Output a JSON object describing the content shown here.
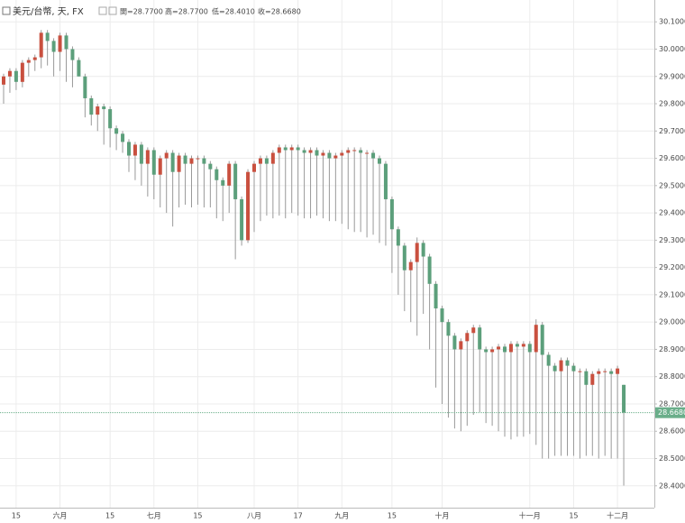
{
  "chart_data": {
    "type": "candlestick",
    "title": "美元/台幣, 天, FX",
    "legend_values": [
      "開=28.7700",
      "高=28.7700",
      "低=28.4010",
      "收=28.6680"
    ],
    "categories": [
      null,
      null,
      "15",
      null,
      null,
      null,
      null,
      null,
      null,
      "六月",
      null,
      null,
      null,
      null,
      null,
      null,
      null,
      "15",
      null,
      null,
      null,
      null,
      null,
      null,
      "七月",
      null,
      null,
      null,
      null,
      null,
      null,
      "15",
      null,
      null,
      null,
      null,
      null,
      null,
      null,
      null,
      "八月",
      null,
      null,
      null,
      null,
      null,
      null,
      "17",
      null,
      null,
      null,
      null,
      null,
      null,
      "九月",
      null,
      null,
      null,
      null,
      null,
      null,
      null,
      "15",
      null,
      null,
      null,
      null,
      null,
      null,
      null,
      "十月",
      null,
      null,
      null,
      null,
      null,
      null,
      null,
      null,
      null,
      null,
      null,
      null,
      null,
      "十一月",
      null,
      null,
      null,
      null,
      null,
      null,
      "15",
      null,
      null,
      null,
      null,
      null,
      null,
      "十二月",
      null
    ],
    "open": [
      29.87,
      29.9,
      29.92,
      29.88,
      29.95,
      29.96,
      29.97,
      30.06,
      30.03,
      29.99,
      30.05,
      30.0,
      29.96,
      29.9,
      29.82,
      29.76,
      29.79,
      29.78,
      29.71,
      29.69,
      29.66,
      29.61,
      29.65,
      29.58,
      29.63,
      29.54,
      29.6,
      29.62,
      29.55,
      29.61,
      29.58,
      29.6,
      29.6,
      29.58,
      29.56,
      29.52,
      29.5,
      29.58,
      29.45,
      29.3,
      29.55,
      29.58,
      29.6,
      29.58,
      29.62,
      29.64,
      29.63,
      29.64,
      29.63,
      29.62,
      29.63,
      29.61,
      29.62,
      29.6,
      29.61,
      29.62,
      29.63,
      29.63,
      29.62,
      29.62,
      29.6,
      29.58,
      29.45,
      29.34,
      29.28,
      29.19,
      29.22,
      29.29,
      29.24,
      29.14,
      29.05,
      29.0,
      28.95,
      28.9,
      28.93,
      28.96,
      28.98,
      28.9,
      28.89,
      28.9,
      28.91,
      28.89,
      28.92,
      28.91,
      28.92,
      28.89,
      28.99,
      28.88,
      28.84,
      28.82,
      28.86,
      28.84,
      28.82,
      28.82,
      28.77,
      28.81,
      28.82,
      28.82,
      28.81,
      28.77
    ],
    "high": [
      29.91,
      29.93,
      29.93,
      29.96,
      29.97,
      29.98,
      30.07,
      30.07,
      30.04,
      30.06,
      30.06,
      30.01,
      29.97,
      29.91,
      29.83,
      29.8,
      29.8,
      29.79,
      29.72,
      29.7,
      29.67,
      29.66,
      29.66,
      29.64,
      29.64,
      29.61,
      29.63,
      29.63,
      29.62,
      29.62,
      29.61,
      29.61,
      29.61,
      29.59,
      29.57,
      29.53,
      29.59,
      29.59,
      29.46,
      29.56,
      29.59,
      29.61,
      29.61,
      29.63,
      29.65,
      29.65,
      29.65,
      29.65,
      29.64,
      29.64,
      29.64,
      29.63,
      29.63,
      29.62,
      29.63,
      29.64,
      29.64,
      29.64,
      29.63,
      29.63,
      29.61,
      29.59,
      29.46,
      29.35,
      29.29,
      29.23,
      29.31,
      29.3,
      29.25,
      29.15,
      29.06,
      29.01,
      28.96,
      28.94,
      28.97,
      28.99,
      28.99,
      28.91,
      28.91,
      28.92,
      28.92,
      28.93,
      28.93,
      28.93,
      28.93,
      29.01,
      29.0,
      28.89,
      28.85,
      28.87,
      28.87,
      28.85,
      28.83,
      28.83,
      28.82,
      28.83,
      28.83,
      28.83,
      28.84,
      28.77
    ],
    "low": [
      29.8,
      29.84,
      29.85,
      29.86,
      29.9,
      29.92,
      29.93,
      29.94,
      29.9,
      29.92,
      29.88,
      29.86,
      29.9,
      29.75,
      29.72,
      29.7,
      29.65,
      29.64,
      29.63,
      29.62,
      29.55,
      29.52,
      29.5,
      29.46,
      29.45,
      29.42,
      29.4,
      29.35,
      29.42,
      29.43,
      29.42,
      29.43,
      29.42,
      29.42,
      29.38,
      29.37,
      29.4,
      29.23,
      29.28,
      29.29,
      29.33,
      29.37,
      29.39,
      29.38,
      29.39,
      29.38,
      29.4,
      29.39,
      29.38,
      29.38,
      29.39,
      29.38,
      29.37,
      29.37,
      29.36,
      29.34,
      29.33,
      29.33,
      29.31,
      29.32,
      29.29,
      29.28,
      29.18,
      29.1,
      29.04,
      29.0,
      28.95,
      29.03,
      28.9,
      28.76,
      28.7,
      28.65,
      28.61,
      28.6,
      28.62,
      28.66,
      28.67,
      28.63,
      28.62,
      28.6,
      28.58,
      28.57,
      28.58,
      28.58,
      28.59,
      28.55,
      28.5,
      28.5,
      28.51,
      28.51,
      28.51,
      28.51,
      28.5,
      28.51,
      28.51,
      28.5,
      28.51,
      28.5,
      28.5,
      28.401
    ],
    "close": [
      29.9,
      29.92,
      29.88,
      29.95,
      29.96,
      29.97,
      30.06,
      30.03,
      29.99,
      30.05,
      30.0,
      29.96,
      29.9,
      29.82,
      29.76,
      29.79,
      29.78,
      29.71,
      29.69,
      29.66,
      29.61,
      29.65,
      29.58,
      29.63,
      29.54,
      29.6,
      29.62,
      29.55,
      29.61,
      29.58,
      29.6,
      29.6,
      29.58,
      29.56,
      29.52,
      29.5,
      29.58,
      29.45,
      29.3,
      29.55,
      29.58,
      29.6,
      29.58,
      29.62,
      29.64,
      29.63,
      29.64,
      29.63,
      29.62,
      29.63,
      29.61,
      29.62,
      29.6,
      29.61,
      29.62,
      29.63,
      29.63,
      29.62,
      29.62,
      29.6,
      29.58,
      29.45,
      29.34,
      29.28,
      29.19,
      29.22,
      29.29,
      29.24,
      29.14,
      29.05,
      29.0,
      28.95,
      28.9,
      28.93,
      28.96,
      28.98,
      28.9,
      28.89,
      28.9,
      28.91,
      28.89,
      28.92,
      28.91,
      28.92,
      28.89,
      28.99,
      28.88,
      28.84,
      28.82,
      28.86,
      28.84,
      28.82,
      28.82,
      28.77,
      28.81,
      28.82,
      28.82,
      28.81,
      28.83,
      28.668
    ],
    "up_color": "#c9503f",
    "down_color": "#5c9f7b",
    "last_price": 28.668,
    "last_price_label": "28.6680",
    "last_price_color": "#6aae8a",
    "ylim": [
      28.32,
      30.18
    ],
    "yticks": [
      {
        "value": 28.4,
        "label": "28.4000"
      },
      {
        "value": 28.5,
        "label": "28.5000"
      },
      {
        "value": 28.6,
        "label": "28.6000"
      },
      {
        "value": 28.7,
        "label": "28.7000"
      },
      {
        "value": 28.8,
        "label": "28.8000"
      },
      {
        "value": 28.9,
        "label": "28.9000"
      },
      {
        "value": 29.0,
        "label": "29.0000"
      },
      {
        "value": 29.1,
        "label": "29.1000"
      },
      {
        "value": 29.2,
        "label": "29.2000"
      },
      {
        "value": 29.3,
        "label": "29.3000"
      },
      {
        "value": 29.4,
        "label": "29.4000"
      },
      {
        "value": 29.5,
        "label": "29.5000"
      },
      {
        "value": 29.6,
        "label": "29.6000"
      },
      {
        "value": 29.7,
        "label": "29.7000"
      },
      {
        "value": 29.8,
        "label": "29.8000"
      },
      {
        "value": 29.9,
        "label": "29.9000"
      },
      {
        "value": 30.0,
        "label": "30.0000"
      },
      {
        "value": 30.1,
        "label": "30.1000"
      }
    ],
    "grid": true
  }
}
